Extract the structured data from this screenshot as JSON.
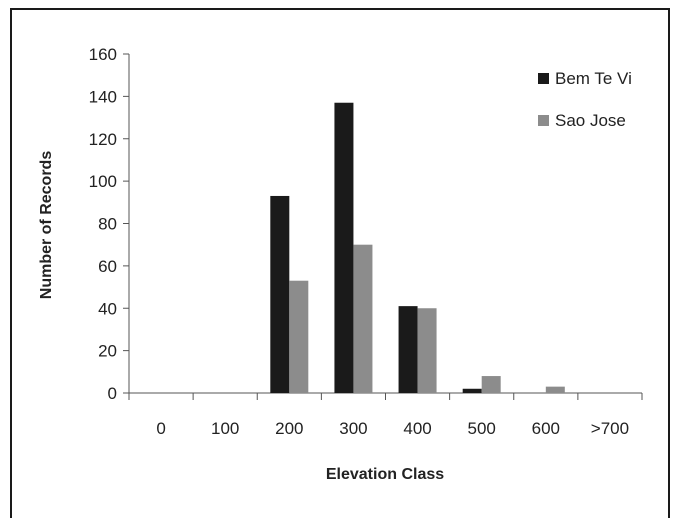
{
  "chart_data": {
    "type": "bar",
    "title": "",
    "xlabel": "Elevation Class",
    "ylabel": "Number of Records",
    "categories": [
      "0",
      "100",
      "200",
      "300",
      "400",
      "500",
      "600",
      ">700"
    ],
    "ylim": [
      0,
      160
    ],
    "yticks": [
      "0",
      "20",
      "40",
      "60",
      "80",
      "100",
      "120",
      "140",
      "160"
    ],
    "grid": false,
    "legend_position": "top-right",
    "series": [
      {
        "name": "Bem Te Vi",
        "color": "#1a1a1a",
        "values": [
          0,
          0,
          93,
          137,
          41,
          2,
          0,
          0
        ]
      },
      {
        "name": "Sao Jose",
        "color": "#8c8c8c",
        "values": [
          0,
          0,
          53,
          70,
          40,
          8,
          3,
          0
        ]
      }
    ]
  }
}
